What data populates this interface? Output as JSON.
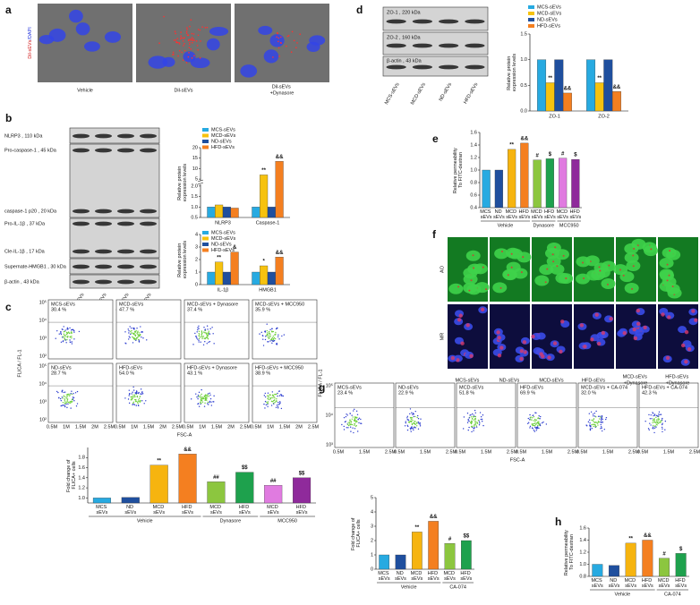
{
  "figure": {
    "letters": [
      "a",
      "b",
      "c",
      "d",
      "e",
      "f",
      "g",
      "h"
    ]
  },
  "panel_a": {
    "ylabel_parts": [
      "Dil-sEVs",
      "/DAPI"
    ],
    "captions": [
      "Vehicle",
      "Dil-sEVs",
      "Dil-sEVs +Dynasore"
    ]
  },
  "blot_b": {
    "bands": [
      "NLRP3 , 110 kDa",
      "Pro-caspase-1 , 45 kDa",
      "caspase-1 p20 , 20 kDa",
      "Pro-IL-1β , 37 kDa",
      "Cle-IL-1β , 17 kDa",
      "Supernate-HMGB1 , 30 kDa",
      "β-actin , 43 kDa"
    ],
    "lanes": [
      "MCS-sEVs",
      "MCD-sEVs",
      "ND-sEVs",
      "HFD-sEVs"
    ]
  },
  "flow_c": {
    "ylabel": "FLICA / FL-1",
    "xlabel": "FSC-A",
    "yticks": [
      "10⁵",
      "10⁴",
      "10³",
      "10²"
    ],
    "xticks": [
      "0.5M",
      "1M",
      "1.5M",
      "2M",
      "2.5M"
    ],
    "plots": [
      {
        "label": "MCS-sEVs",
        "percent": "30.4 %"
      },
      {
        "label": "MCD-sEVs",
        "percent": "47.7 %"
      },
      {
        "label": "MCD-sEVs + Dynasore",
        "percent": "37.4 %"
      },
      {
        "label": "MCD-sEVs + MCC950",
        "percent": "35.9 %"
      },
      {
        "label": "ND-sEVs",
        "percent": "28.7 %"
      },
      {
        "label": "HFD-sEVs",
        "percent": "54.0 %"
      },
      {
        "label": "HFD-sEVs + Dynasore",
        "percent": "43.1 %"
      },
      {
        "label": "HFD-sEVs + MCC950",
        "percent": "38.9 %"
      }
    ]
  },
  "blot_d": {
    "bands": [
      "ZO-1 , 220 kDa",
      "ZO-2 , 160 kDa",
      "β-actin , 43 kDa"
    ],
    "lanes": [
      "MCS-sEVs",
      "MCD-sEVs",
      "ND-sEVs",
      "HFD-sEVs"
    ]
  },
  "panel_f": {
    "rows": [
      "AO",
      "MR"
    ],
    "captions": [
      "MCS-sEVs",
      "ND-sEVs",
      "MCD-sEVs",
      "HFD-sEVs",
      "MCD-sEVs +Dynasore",
      "HFD-sEVs +Dynasore"
    ]
  },
  "flow_g": {
    "ylabel": "FLICA / FL-1",
    "xlabel": "FSC-A",
    "yticks": [
      "10⁵",
      "10⁴",
      "10³"
    ],
    "xticks": [
      "0.5M",
      "1.5M",
      "2.5M"
    ],
    "plots": [
      {
        "label": "MCS-sEVs",
        "percent": "23.4 %"
      },
      {
        "label": "ND-sEVs",
        "percent": "22.9 %"
      },
      {
        "label": "MCD-sEVs",
        "percent": "51.8 %"
      },
      {
        "label": "HFD-sEVs",
        "percent": "69.9 %"
      },
      {
        "label": "MCD-sEVs + CA-074",
        "percent": "32.0 %"
      },
      {
        "label": "HFD-sEVs + CA-074",
        "percent": "42.3 %"
      }
    ]
  },
  "chart_data": [
    {
      "type": "bar",
      "ylabel": "Relative protein expression levels",
      "categories": [
        "NLRP3",
        "Caspase-1"
      ],
      "ylim": [
        0.5,
        20
      ],
      "ybreak": [
        2,
        5
      ],
      "yticks": [
        0.5,
        {
          "value": 1,
          "label": "1.0"
        },
        1.5,
        {
          "value": 2,
          "label": "2.0"
        },
        5,
        10,
        15,
        20
      ],
      "series": [
        {
          "name": "MCS-sEVs",
          "color": "#27aae1",
          "values": [
            1,
            1
          ],
          "marks": [
            null,
            null
          ]
        },
        {
          "name": "MCD-sEVs",
          "color": "#f6c20f",
          "values": [
            1.1,
            7
          ],
          "marks": [
            null,
            "**"
          ]
        },
        {
          "name": "ND-sEVs",
          "color": "#1f4f9e",
          "values": [
            1,
            1
          ],
          "marks": [
            null,
            null
          ]
        },
        {
          "name": "HFD-sEVs",
          "color": "#f47f20",
          "values": [
            0.95,
            13.5
          ],
          "marks": [
            null,
            "&&"
          ]
        }
      ]
    },
    {
      "type": "bar",
      "ylabel": "Relative protein expression levels",
      "categories": [
        "IL-1β",
        "HMGB1"
      ],
      "ylim": [
        0,
        4
      ],
      "yticks": [
        0,
        1,
        2,
        3,
        4
      ],
      "series": [
        {
          "name": "MCS-sEVs",
          "color": "#27aae1",
          "values": [
            1,
            1
          ],
          "marks": [
            null,
            null
          ]
        },
        {
          "name": "MCD-sEVs",
          "color": "#f6c20f",
          "values": [
            1.8,
            1.5
          ],
          "marks": [
            "**",
            "*"
          ]
        },
        {
          "name": "ND-sEVs",
          "color": "#1f4f9e",
          "values": [
            1,
            1
          ],
          "marks": [
            null,
            null
          ]
        },
        {
          "name": "HFD-sEVs",
          "color": "#f47f20",
          "values": [
            2.6,
            2.2
          ],
          "marks": [
            "&",
            "&&"
          ]
        }
      ]
    },
    {
      "type": "bar",
      "ylabel": "Fold change of FLICA+ cells",
      "ylim": [
        0.9,
        2.0
      ],
      "yticks": [
        {
          "value": 1,
          "label": "1.0"
        },
        1.2,
        1.4,
        1.6,
        1.8
      ],
      "groups": [
        {
          "label": "Vehicle",
          "categories": [
            "MCS sEVs",
            "ND sEVs",
            "MCD sEVs",
            "HFD sEVs"
          ],
          "values": [
            1.0,
            1.01,
            1.65,
            1.87
          ],
          "colors": [
            "#27aae1",
            "#1f4f9e",
            "#f6b40f",
            "#f47f20"
          ],
          "marks": [
            null,
            null,
            "**",
            "&&"
          ]
        },
        {
          "label": "Dynasore",
          "categories": [
            "MCD sEVs",
            "HFD sEVs"
          ],
          "values": [
            1.32,
            1.51
          ],
          "colors": [
            "#8cc63f",
            "#1ea14d"
          ],
          "marks": [
            "##",
            "$$"
          ]
        },
        {
          "label": "MCC950",
          "categories": [
            "MCD sEVs",
            "HFD sEVs"
          ],
          "values": [
            1.25,
            1.4
          ],
          "colors": [
            "#e07be0",
            "#8f2a9b"
          ],
          "marks": [
            "##",
            "$$"
          ]
        }
      ]
    },
    {
      "type": "bar",
      "ylabel": "Relative protein expression levels",
      "categories": [
        "ZO-1",
        "ZO-2"
      ],
      "ylim": [
        0,
        1.5
      ],
      "yticks": [
        {
          "value": 0,
          "label": "0.0"
        },
        0.5,
        {
          "value": 1,
          "label": "1.0"
        },
        1.5
      ],
      "series": [
        {
          "name": "MCS-sEVs",
          "color": "#27aae1",
          "values": [
            1,
            1
          ],
          "marks": [
            null,
            null
          ]
        },
        {
          "name": "MCD-sEVs",
          "color": "#f6c20f",
          "values": [
            0.55,
            0.55
          ],
          "marks": [
            "**",
            "**"
          ]
        },
        {
          "name": "ND-sEVs",
          "color": "#1f4f9e",
          "values": [
            1,
            1
          ],
          "marks": [
            null,
            null
          ]
        },
        {
          "name": "HFD-sEVs",
          "color": "#f47f20",
          "values": [
            0.35,
            0.38
          ],
          "marks": [
            "&&",
            "&&"
          ]
        }
      ]
    },
    {
      "type": "bar",
      "ylabel": "Relative permeability To FITC-dextran",
      "ylim": [
        0.4,
        1.6
      ],
      "yticks": [
        0.4,
        0.6,
        0.8,
        {
          "value": 1,
          "label": "1.0"
        },
        1.2,
        1.4,
        1.6
      ],
      "groups": [
        {
          "label": "Vehicle",
          "categories": [
            "MCS sEVs",
            "ND sEVs",
            "MCD sEVs",
            "HFD sEVs"
          ],
          "values": [
            1.0,
            1.0,
            1.33,
            1.43
          ],
          "colors": [
            "#27aae1",
            "#1f4f9e",
            "#f6b40f",
            "#f47f20"
          ],
          "marks": [
            null,
            null,
            "**",
            "&&"
          ]
        },
        {
          "label": "Dynasore",
          "categories": [
            "MCD sEVs",
            "HFD sEVs"
          ],
          "values": [
            1.16,
            1.18
          ],
          "colors": [
            "#8cc63f",
            "#1ea14d"
          ],
          "marks": [
            "#",
            "$"
          ]
        },
        {
          "label": "MCC950",
          "categories": [
            "MCD sEVs",
            "HFD sEVs"
          ],
          "values": [
            1.19,
            1.17
          ],
          "colors": [
            "#e07be0",
            "#8f2a9b"
          ],
          "marks": [
            "#",
            "$"
          ]
        }
      ]
    },
    {
      "type": "bar",
      "ylabel": "Fold change of FLICA+ cells",
      "ylim": [
        0,
        5
      ],
      "yticks": [
        0,
        1,
        2,
        3,
        4,
        5
      ],
      "groups": [
        {
          "label": "Vehicle",
          "categories": [
            "MCS sEVs",
            "ND sEVs",
            "MCD sEVs",
            "HFD sEVs"
          ],
          "values": [
            1.0,
            1.0,
            2.6,
            3.35
          ],
          "colors": [
            "#27aae1",
            "#1f4f9e",
            "#f6b40f",
            "#f47f20"
          ],
          "marks": [
            null,
            null,
            "**",
            "&&"
          ]
        },
        {
          "label": "CA-074",
          "categories": [
            "MCD sEVs",
            "HFD sEVs"
          ],
          "values": [
            1.8,
            2.0
          ],
          "colors": [
            "#8cc63f",
            "#1ea14d"
          ],
          "marks": [
            "#",
            "$$"
          ]
        }
      ]
    },
    {
      "type": "bar",
      "ylabel": "Relative permeability To FITC-dextran",
      "ylim": [
        0.8,
        1.6
      ],
      "yticks": [
        0.8,
        {
          "value": 1,
          "label": "1.0"
        },
        1.2,
        1.4,
        1.6
      ],
      "groups": [
        {
          "label": "Vehicle",
          "categories": [
            "MCS sEVs",
            "ND sEVs",
            "MCD sEVs",
            "HFD sEVs"
          ],
          "values": [
            1.0,
            0.98,
            1.35,
            1.4
          ],
          "colors": [
            "#27aae1",
            "#1f4f9e",
            "#f6b40f",
            "#f47f20"
          ],
          "marks": [
            null,
            null,
            "**",
            "&&"
          ]
        },
        {
          "label": "CA-074",
          "categories": [
            "MCD sEVs",
            "HFD sEVs"
          ],
          "values": [
            1.1,
            1.18
          ],
          "colors": [
            "#8cc63f",
            "#1ea14d"
          ],
          "marks": [
            "#",
            "$"
          ]
        }
      ]
    }
  ]
}
